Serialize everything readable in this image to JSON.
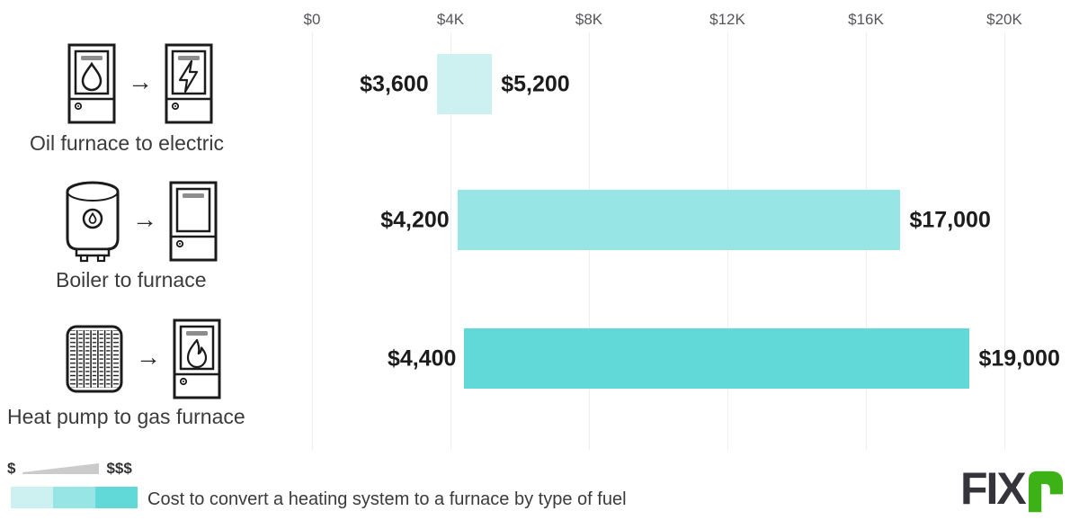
{
  "chart_data": {
    "type": "bar",
    "orientation": "horizontal-range",
    "title": "Cost to convert a heating system to a furnace by type of fuel",
    "x_axis": {
      "tick_labels": [
        "$0",
        "$4K",
        "$8K",
        "$12K",
        "$16K",
        "$20K"
      ],
      "tick_values": [
        0,
        4000,
        8000,
        12000,
        16000,
        20000
      ],
      "xlim": [
        0,
        22000
      ],
      "grid": true
    },
    "rows": [
      {
        "label": "Oil furnace to electric",
        "icons": [
          "oil-furnace",
          "electric-furnace"
        ],
        "min": 3600,
        "max": 5200,
        "min_label": "$3,600",
        "max_label": "$5,200",
        "color": "#cdf0f1"
      },
      {
        "label": "Boiler to furnace",
        "icons": [
          "boiler",
          "furnace"
        ],
        "min": 4200,
        "max": 17000,
        "min_label": "$4,200",
        "max_label": "$17,000",
        "color": "#97e5e4"
      },
      {
        "label": "Heat pump to gas furnace",
        "icons": [
          "heat-pump",
          "gas-furnace"
        ],
        "min": 4400,
        "max": 19000,
        "min_label": "$4,400",
        "max_label": "$19,000",
        "color": "#62d9d9"
      }
    ],
    "legend": {
      "low_label": "$",
      "high_label": "$$$",
      "swatch_colors": [
        "#cdf0f1",
        "#97e5e4",
        "#62d9d9"
      ]
    }
  },
  "branding": {
    "logo_fix": "FIX",
    "logo_r_color": "#3cb216",
    "logo_text_color": "#35343a"
  }
}
